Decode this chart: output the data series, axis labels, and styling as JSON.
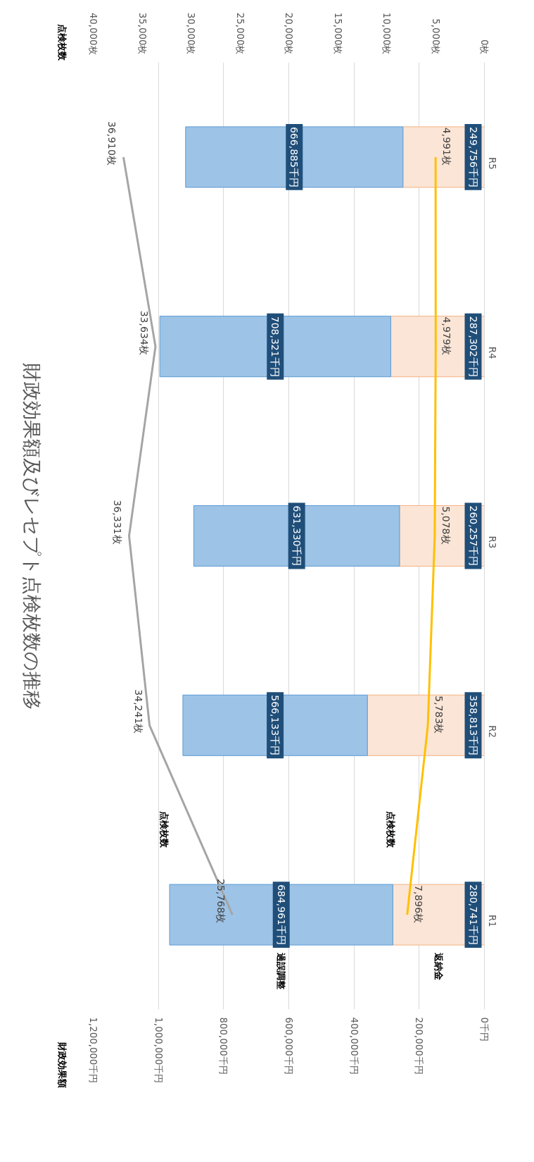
{
  "chart_data": {
    "type": "bar",
    "orientation": "horizontal",
    "stacked": true,
    "title": "財政効果額及びレセプト点検枚数の推移",
    "ylabel": "財政効果額",
    "x2label": "点検枚数",
    "categories": [
      "R5",
      "R4",
      "R3",
      "R2",
      "R1"
    ],
    "series": [
      {
        "name": "返納金",
        "type": "bar",
        "color": "#fbe5d6",
        "values": [
          249756,
          287302,
          260257,
          358813,
          280741
        ],
        "value_labels": [
          "249,756千円",
          "287,302千円",
          "260,257千円",
          "358,813千円",
          "280,741千円"
        ]
      },
      {
        "name": "過誤調整",
        "type": "bar",
        "color": "#9dc3e6",
        "values": [
          666885,
          708321,
          631330,
          566133,
          684961
        ],
        "value_labels": [
          "666,885千円",
          "708,321千円",
          "631,330千円",
          "566,133千円",
          "684,961千円"
        ]
      },
      {
        "name": "点検枚数",
        "type": "line",
        "axis": "x2",
        "color": "#ffc000",
        "values": [
          4991,
          4979,
          5078,
          5783,
          7896
        ],
        "value_labels": [
          "4,991枚",
          "4,979枚",
          "5,078枚",
          "5,783枚",
          "7,896枚"
        ]
      },
      {
        "name": "点検枚数",
        "type": "line",
        "axis": "x2",
        "color": "#a5a5a5",
        "values": [
          36910,
          33634,
          36331,
          34241,
          25768
        ],
        "value_labels": [
          "36,910枚",
          "33,634枚",
          "36,331枚",
          "34,241枚",
          "25,768枚"
        ]
      }
    ],
    "xlim": [
      1200000,
      0
    ],
    "xticks": [
      {
        "value": 0,
        "label": "0千円"
      },
      {
        "value": 200000,
        "label": "200,000千円"
      },
      {
        "value": 400000,
        "label": "400,000千円"
      },
      {
        "value": 600000,
        "label": "600,000千円"
      },
      {
        "value": 800000,
        "label": "800,000千円"
      },
      {
        "value": 1000000,
        "label": "1,000,000千円"
      },
      {
        "value": 1200000,
        "label": "1,200,000千円"
      }
    ],
    "x2lim": [
      40000,
      0
    ],
    "x2ticks": [
      {
        "value": 0,
        "label": "0枚"
      },
      {
        "value": 5000,
        "label": "5,000枚"
      },
      {
        "value": 10000,
        "label": "10,000枚"
      },
      {
        "value": 15000,
        "label": "15,000枚"
      },
      {
        "value": 20000,
        "label": "20,000枚"
      },
      {
        "value": 25000,
        "label": "25,000枚"
      },
      {
        "value": 30000,
        "label": "30,000枚"
      },
      {
        "value": 35000,
        "label": "35,000枚"
      },
      {
        "value": 40000,
        "label": "40,000枚"
      }
    ],
    "grid": "x"
  }
}
